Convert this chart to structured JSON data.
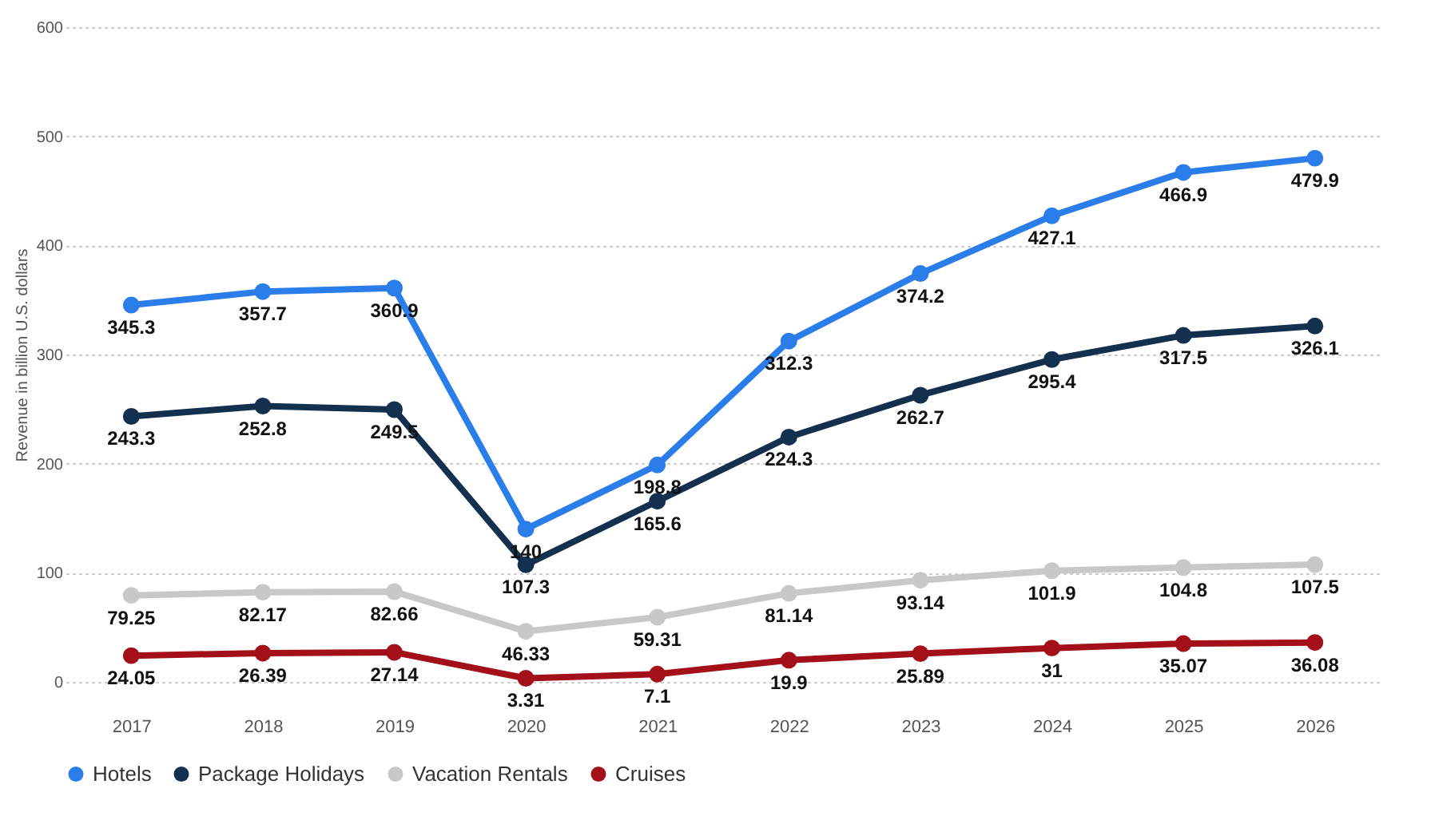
{
  "chart_data": {
    "type": "line",
    "ylabel": "Revenue in billion U.S. dollars",
    "categories": [
      "2017",
      "2018",
      "2019",
      "2020",
      "2021",
      "2022",
      "2023",
      "2024",
      "2025",
      "2026"
    ],
    "series": [
      {
        "name": "Hotels",
        "color": "#2b7de9",
        "values": [
          345.3,
          357.7,
          360.9,
          140,
          198.8,
          312.3,
          374.2,
          427.1,
          466.9,
          479.9
        ]
      },
      {
        "name": "Package Holidays",
        "color": "#14304f",
        "values": [
          243.3,
          252.8,
          249.5,
          107.3,
          165.6,
          224.3,
          262.7,
          295.4,
          317.5,
          326.1
        ]
      },
      {
        "name": "Vacation Rentals",
        "color": "#c8c8c8",
        "values": [
          79.25,
          82.17,
          82.66,
          46.33,
          59.31,
          81.14,
          93.14,
          101.9,
          104.8,
          107.5
        ]
      },
      {
        "name": "Cruises",
        "color": "#a3101a",
        "values": [
          24.05,
          26.39,
          27.14,
          3.31,
          7.1,
          19.9,
          25.89,
          31,
          35.07,
          36.08
        ]
      }
    ],
    "ylim": [
      0,
      600
    ],
    "yticks": [
      0,
      100,
      200,
      300,
      400,
      500,
      600
    ],
    "grid": "y",
    "legend": "bottom",
    "marker": "circle",
    "line_style": "solid",
    "data_labels": true
  }
}
